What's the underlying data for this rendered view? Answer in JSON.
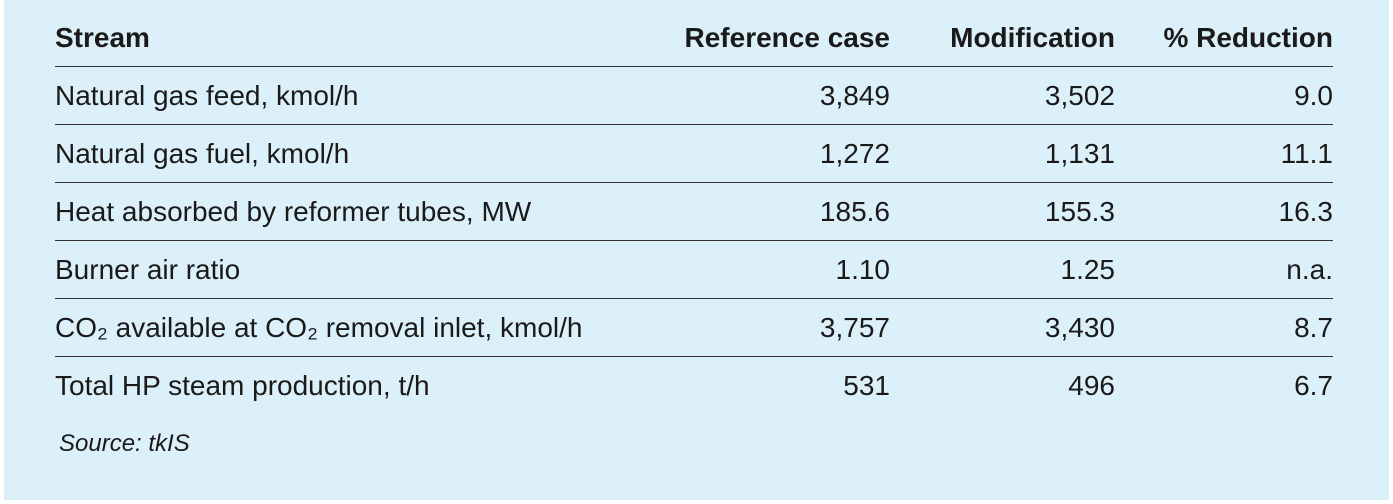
{
  "table": {
    "header": [
      "Stream",
      "Reference case",
      "Modification",
      "% Reduction"
    ],
    "rows": [
      [
        "Natural gas feed, kmol/h",
        "3,849",
        "3,502",
        "9.0"
      ],
      [
        "Natural gas fuel, kmol/h",
        "1,272",
        "1,131",
        "11.1"
      ],
      [
        "Heat absorbed by reformer tubes, MW",
        "185.6",
        "155.3",
        "16.3"
      ],
      [
        "Burner air ratio",
        "1.10",
        "1.25",
        "n.a."
      ],
      [
        "CO₂ available at CO₂ removal inlet, kmol/h",
        "3,757",
        "3,430",
        "8.7"
      ],
      [
        "Total HP steam production, t/h",
        "531",
        "496",
        "6.7"
      ]
    ],
    "source": "Source: tkIS"
  }
}
